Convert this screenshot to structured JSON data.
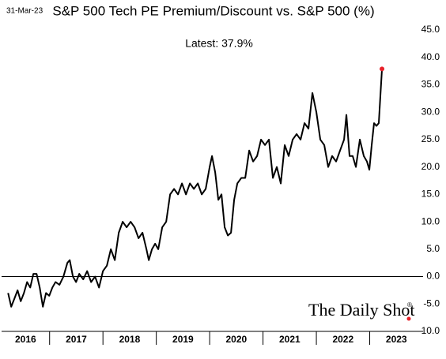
{
  "chart_data": {
    "type": "line",
    "date": "31-Mar-23",
    "title": "S&P 500 Tech PE Premium/Discount vs. S&P 500 (%)",
    "annotation": "Latest:  37.9%",
    "watermark": "The Daily Shot",
    "watermark_mark": "®",
    "color": "#000000",
    "last_point_color": "#e8212a",
    "xlim": [
      2016.1,
      2024
    ],
    "xticks": [
      2016,
      2017,
      2018,
      2019,
      2020,
      2021,
      2022,
      2023
    ],
    "ylim": [
      -10,
      45
    ],
    "yticks": [
      {
        "value": -10,
        "label": "-10.0"
      },
      {
        "value": -5,
        "label": "-5.0"
      },
      {
        "value": 0,
        "label": "0.0"
      },
      {
        "value": 5,
        "label": "5.0"
      },
      {
        "value": 10,
        "label": "10.0"
      },
      {
        "value": 15,
        "label": "15.0"
      },
      {
        "value": 20,
        "label": "20.0"
      },
      {
        "value": 25,
        "label": "25.0"
      },
      {
        "value": 30,
        "label": "30.0"
      },
      {
        "value": 35,
        "label": "35.0"
      },
      {
        "value": 40,
        "label": "40.0"
      },
      {
        "value": 45,
        "label": "45.0"
      }
    ],
    "x": [
      2016.222,
      2016.281,
      2016.341,
      2016.4,
      2016.459,
      2016.519,
      2016.578,
      2016.637,
      2016.696,
      2016.756,
      2016.815,
      2016.874,
      2016.933,
      2016.993,
      2017.052,
      2017.111,
      2017.185,
      2017.259,
      2017.333,
      2017.378,
      2017.437,
      2017.496,
      2017.556,
      2017.63,
      2017.704,
      2017.778,
      2017.852,
      2017.926,
      2018.0,
      2018.074,
      2018.148,
      2018.222,
      2018.296,
      2018.37,
      2018.444,
      2018.519,
      2018.593,
      2018.667,
      2018.741,
      2018.815,
      2018.859,
      2018.919,
      2018.978,
      2019.037,
      2019.111,
      2019.185,
      2019.259,
      2019.333,
      2019.407,
      2019.481,
      2019.556,
      2019.63,
      2019.704,
      2019.778,
      2019.852,
      2019.926,
      2020.0,
      2020.044,
      2020.104,
      2020.163,
      2020.222,
      2020.281,
      2020.341,
      2020.4,
      2020.459,
      2020.519,
      2020.593,
      2020.667,
      2020.741,
      2020.815,
      2020.889,
      2020.963,
      2021.037,
      2021.111,
      2021.185,
      2021.259,
      2021.333,
      2021.407,
      2021.481,
      2021.556,
      2021.63,
      2021.704,
      2021.778,
      2021.852,
      2021.926,
      2022.0,
      2022.074,
      2022.148,
      2022.222,
      2022.296,
      2022.37,
      2022.444,
      2022.519,
      2022.563,
      2022.622,
      2022.681,
      2022.741,
      2022.815,
      2022.889,
      2022.948,
      2022.993,
      2023.037,
      2023.081,
      2023.126,
      2023.17,
      2023.2,
      2023.23
    ],
    "values": [
      -3,
      -5.5,
      -4,
      -2.5,
      -4.5,
      -3,
      -1,
      -2,
      0.5,
      0.5,
      -2,
      -5.5,
      -3,
      -3.5,
      -2,
      -1,
      -1.5,
      0,
      2.5,
      3,
      0,
      -1,
      0.5,
      -0.5,
      1,
      -1,
      0,
      -2,
      1,
      2,
      5,
      3,
      8,
      10,
      9,
      10,
      9,
      7,
      8,
      5,
      3,
      5,
      6,
      5,
      9,
      10,
      15,
      16,
      15,
      17,
      15,
      17,
      16,
      17,
      15,
      16,
      20,
      22,
      19,
      14,
      15,
      9,
      7.5,
      8,
      14,
      17,
      18,
      18,
      23,
      21,
      22,
      25,
      24,
      25,
      18,
      20,
      17,
      24,
      22,
      25,
      26,
      25,
      28,
      27,
      33.5,
      30,
      25,
      24,
      20,
      22,
      21,
      23,
      25,
      29.5,
      22,
      22,
      20,
      25,
      22,
      21,
      19.5,
      24,
      28,
      27.5,
      28,
      33,
      37.9
    ]
  }
}
